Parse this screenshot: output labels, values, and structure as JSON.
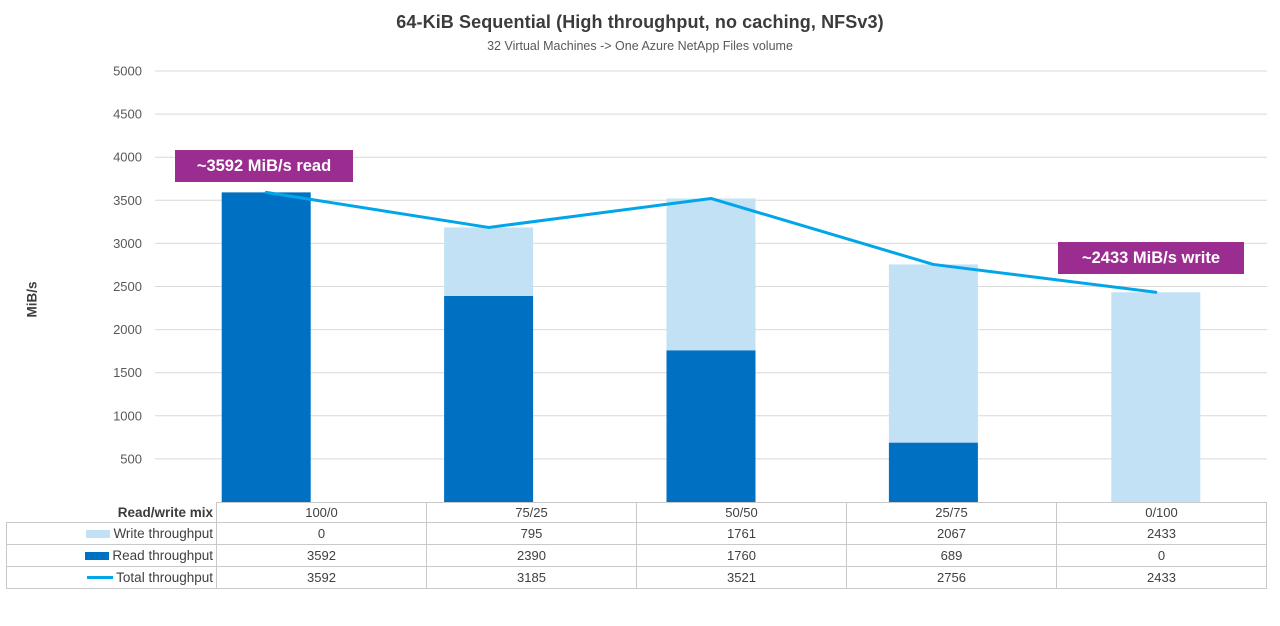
{
  "header": {
    "title": "64-KiB Sequential (High throughput, no caching, NFSv3)",
    "subtitle": "32 Virtual Machines -> One Azure NetApp Files volume"
  },
  "chart_data": {
    "type": "bar",
    "subtype": "stacked-bars-with-total-line",
    "title": "64-KiB Sequential (High throughput, no caching, NFSv3)",
    "subtitle": "32 Virtual Machines -> One Azure NetApp Files volume",
    "categories": [
      "100/0",
      "75/25",
      "50/50",
      "25/75",
      "0/100"
    ],
    "category_axis_label": "Read/write mix",
    "series": [
      {
        "name": "Write throughput",
        "type": "bar",
        "color": "#c3e1f5",
        "values": [
          0,
          795,
          1761,
          2067,
          2433
        ]
      },
      {
        "name": "Read throughput",
        "type": "bar",
        "color": "#0071c2",
        "values": [
          3592,
          2390,
          1760,
          689,
          0
        ]
      },
      {
        "name": "Total throughput",
        "type": "line",
        "color": "#00a6e8",
        "values": [
          3592,
          3185,
          3521,
          2756,
          2433
        ]
      }
    ],
    "stack_bottom_to_top": [
      "Read throughput",
      "Write throughput"
    ],
    "ylabel": "MiB/s",
    "ylim": [
      0,
      5000
    ],
    "ytick_step": 500,
    "grid": true,
    "gridline_color": "#d9d9d9",
    "legend_position": "table-left"
  },
  "annotations": [
    {
      "text": "~3592 MiB/s read",
      "background": "#9b2d90",
      "text_color": "#ffffff"
    },
    {
      "text": "~2433 MiB/s write",
      "background": "#9b2d90",
      "text_color": "#ffffff"
    }
  ]
}
